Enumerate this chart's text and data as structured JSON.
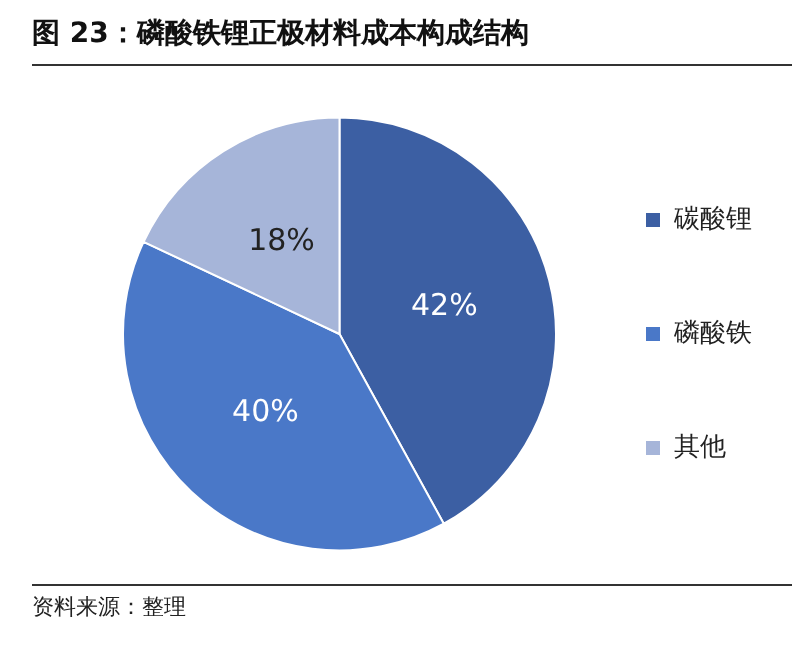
{
  "chart_data": {
    "type": "pie",
    "title": "图 23：磷酸铁锂正极材料成本构成结构",
    "categories": [
      "碳酸锂",
      "磷酸铁",
      "其他"
    ],
    "values": [
      42,
      40,
      18
    ],
    "colors": [
      "#3c5fa3",
      "#4a78c8",
      "#a6b5d9"
    ],
    "value_labels": [
      "42%",
      "40%",
      "18%"
    ],
    "legend": "right",
    "annotations": [
      "资料来源：整理"
    ]
  }
}
